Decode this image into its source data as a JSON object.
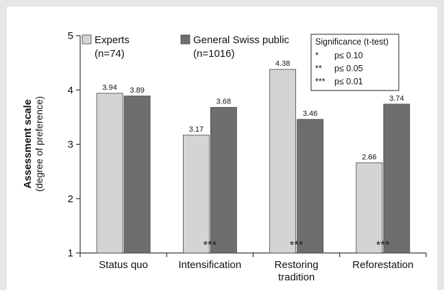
{
  "chart_data": {
    "type": "bar",
    "categories": [
      "Status quo",
      "Intensification",
      "Restoring|tradition",
      "Reforestation"
    ],
    "series": [
      {
        "name": "Experts|(n=74)",
        "values": [
          3.94,
          3.17,
          4.38,
          2.66
        ],
        "color": "#d4d4d4"
      },
      {
        "name": "General Swiss public|(n=1016)",
        "values": [
          3.89,
          3.68,
          3.46,
          3.74
        ],
        "color": "#6e6e6e"
      }
    ],
    "value_labels": [
      [
        "3.94",
        "3.17",
        "4.38",
        "2.66"
      ],
      [
        "3.89",
        "3.68",
        "3.46",
        "3.74"
      ]
    ],
    "significance_marks": [
      "",
      "***",
      "***",
      "***"
    ],
    "ylabel_bold": "Assessment scale",
    "ylabel": "(degree of preference)",
    "xlabel": "",
    "ylim": [
      1,
      5
    ],
    "yticks": [
      "1",
      "2",
      "3",
      "4",
      "5"
    ],
    "grid": false,
    "legend_position": "top",
    "significance_box": {
      "title": "Significance (t-test)",
      "rows": [
        {
          "mark": "*",
          "text": "p≤ 0.10"
        },
        {
          "mark": "**",
          "text": "p≤ 0.05"
        },
        {
          "mark": "***",
          "text": "p≤ 0.01"
        }
      ]
    }
  }
}
